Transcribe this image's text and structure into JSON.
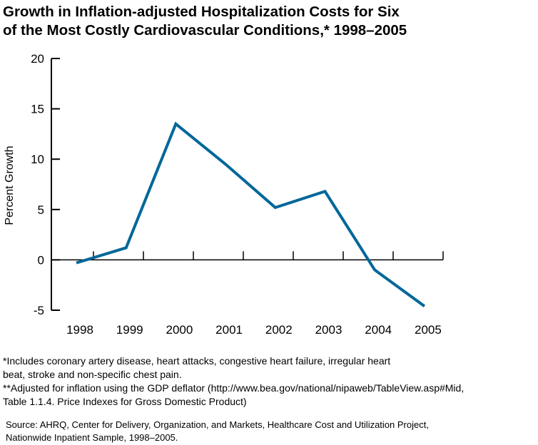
{
  "title_line1": "Growth in Inflation-adjusted Hospitalization Costs for Six",
  "title_line2": "of the Most Costly Cardiovascular Conditions,* 1998–2005",
  "chart_data": {
    "type": "line",
    "title": "Growth in Inflation-adjusted Hospitalization Costs for Six of the Most Costly Cardiovascular Conditions,* 1998–2005",
    "xlabel": "",
    "ylabel": "Percent Growth",
    "categories": [
      "1998",
      "1999",
      "2000",
      "2001",
      "2002",
      "2003",
      "2004",
      "2005"
    ],
    "values": [
      -0.3,
      1.2,
      13.5,
      9.5,
      5.2,
      6.8,
      -1.0,
      -4.6
    ],
    "ylim": [
      -5,
      20
    ],
    "yticks": [
      "20",
      "15",
      "10",
      "5",
      "0",
      "-5"
    ],
    "grid": false,
    "line_color": "#00679a"
  },
  "footnotes": [
    "*Includes coronary artery disease, heart attacks, congestive heart failure, irregular heart",
    "beat, stroke and non-specific chest pain.",
    "**Adjusted for inflation using the GDP deflator (http://www.bea.gov/national/nipaweb/TableView.asp#Mid,",
    "Table 1.1.4. Price Indexes for Gross Domestic Product)"
  ],
  "source": [
    "Source:  AHRQ, Center for Delivery, Organization, and Markets, Healthcare Cost and Utilization Project,",
    "Nationwide Inpatient Sample, 1998–2005."
  ]
}
